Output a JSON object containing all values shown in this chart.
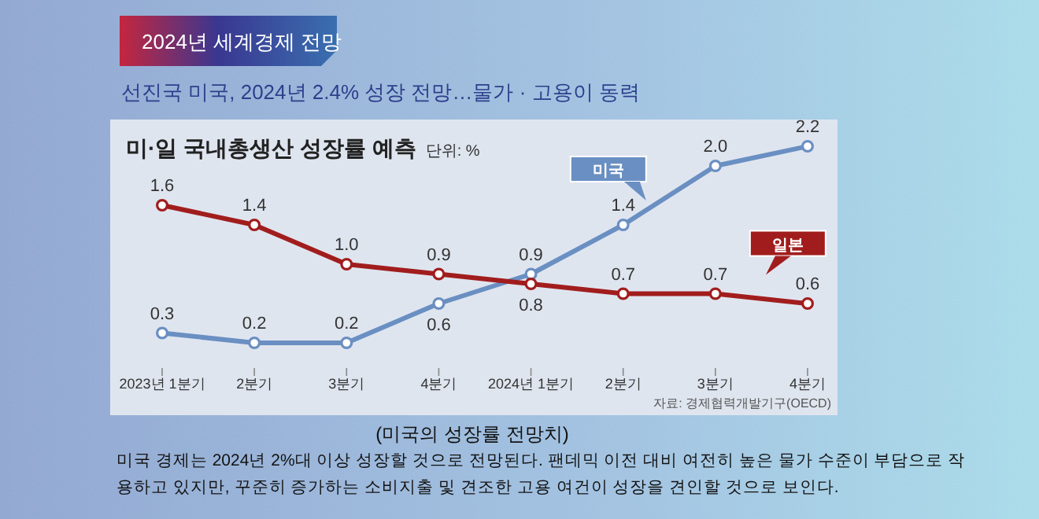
{
  "chart_data": {
    "type": "line",
    "title": "미·일 국내총생산 성장률 예측",
    "categories": [
      "2023년 1분기",
      "2분기",
      "3분기",
      "4분기",
      "2024년 1분기",
      "2분기",
      "3분기",
      "4분기"
    ],
    "series": [
      {
        "name": "미국",
        "color": "#6a8fc2",
        "values": [
          0.3,
          0.2,
          0.2,
          0.6,
          0.9,
          1.4,
          2.0,
          2.2
        ],
        "value_labels": [
          "0.3",
          "0.2",
          "0.2",
          "0.6",
          "0.9",
          "1.4",
          "2.0",
          "2.2"
        ]
      },
      {
        "name": "일본",
        "color": "#a11d1d",
        "values": [
          1.6,
          1.4,
          1.0,
          0.9,
          0.8,
          0.7,
          0.7,
          0.6
        ],
        "value_labels": [
          "1.6",
          "1.4",
          "1.0",
          "0.9",
          "0.8",
          "0.7",
          "0.7",
          "0.6"
        ]
      }
    ],
    "marker": "circle",
    "line_style": "solid",
    "grid": false,
    "legend": false,
    "annotations": [
      "2024년 세계경제 전망",
      "선진국 미국, 2024년 2.4% 성장 전망…물가 · 고용이 동력",
      "단위: %",
      "자료: 경제협력개발기구(OECD)",
      "(미국의 성장률 전망치)",
      "미국 경제는 2024년 2%대 이상 성장할 것으로 전망된다. 팬데믹 이전 대비 여전히 높은 물가 수준이 부담으로 작용하고 있지만, 꾸준히 증가하는 소비지출 및 견조한 고용 여건이 성장을 견인할 것으로 보인다."
    ]
  }
}
